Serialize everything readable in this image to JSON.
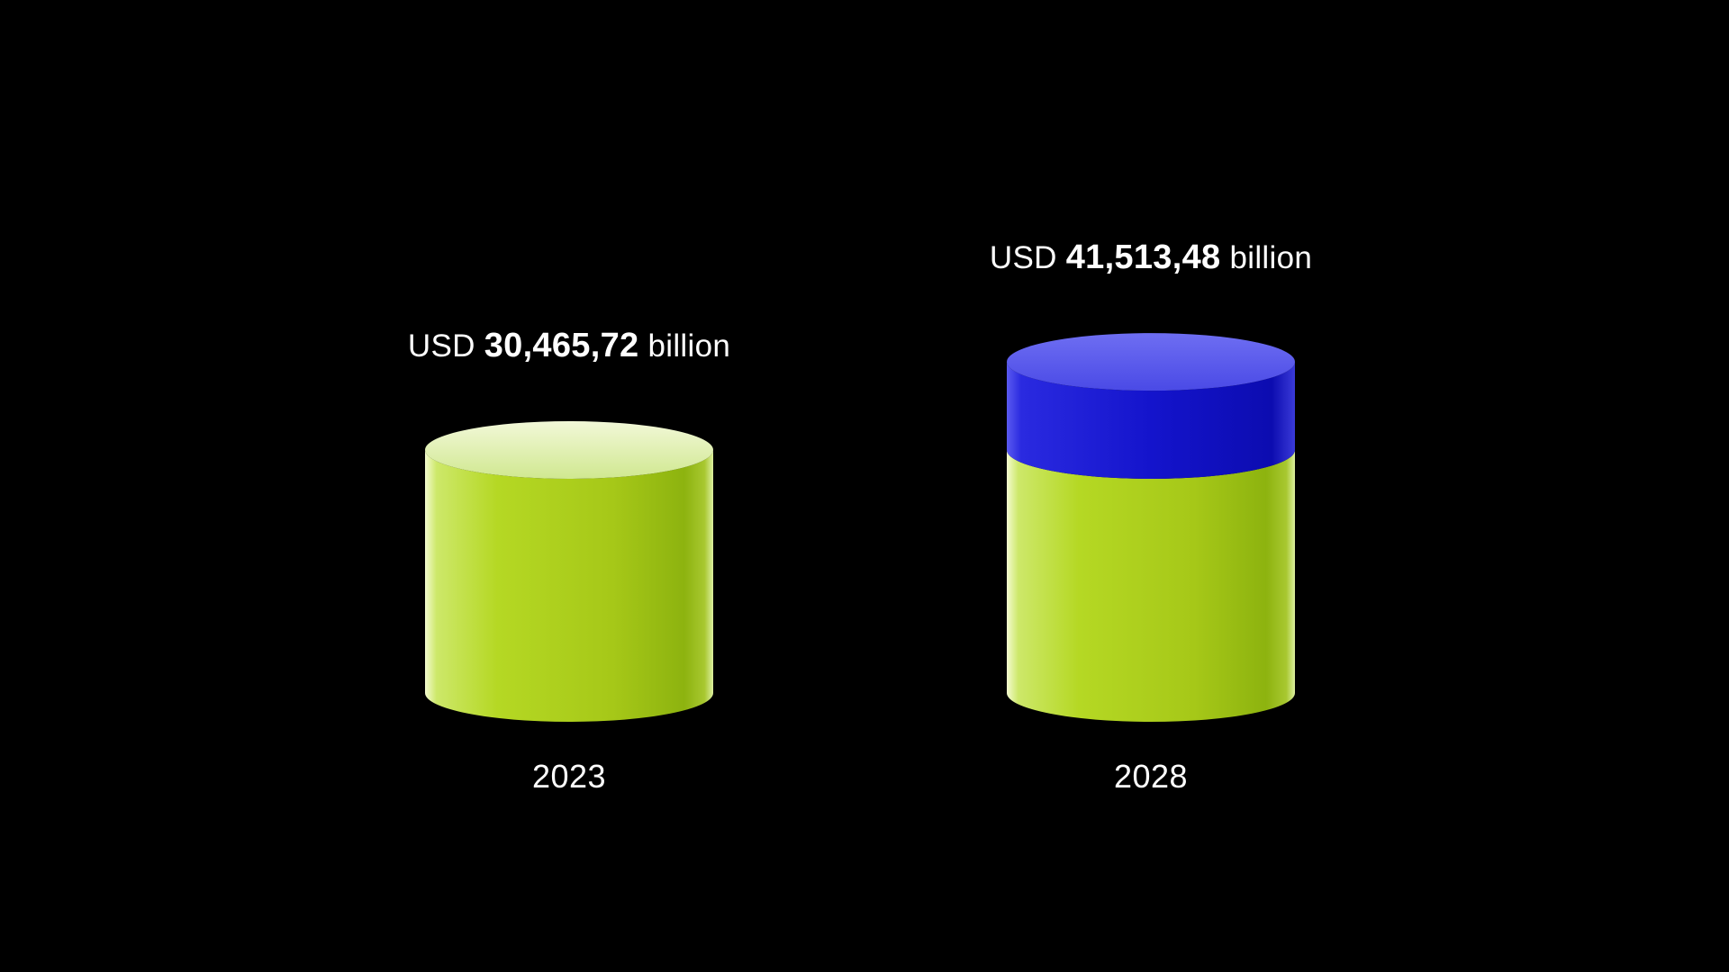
{
  "chart_data": {
    "type": "bar",
    "style": "3d-cylinder",
    "categories": [
      "2023",
      "2028"
    ],
    "values": [
      30465.72,
      41513.48
    ],
    "series": [
      {
        "values": [
          30465.72,
          30465.72
        ],
        "color": "#a9cc1a"
      },
      {
        "values": [
          0,
          11047.76
        ],
        "color": "#1616cc"
      }
    ],
    "data_labels": [
      {
        "prefix": "USD",
        "value": "30,465,72",
        "suffix": "billion"
      },
      {
        "prefix": "USD",
        "value": "41,513,48",
        "suffix": "billion"
      }
    ],
    "title": "",
    "xlabel": "",
    "ylabel": "",
    "grid": false,
    "legend": "none",
    "background": "#000000"
  }
}
